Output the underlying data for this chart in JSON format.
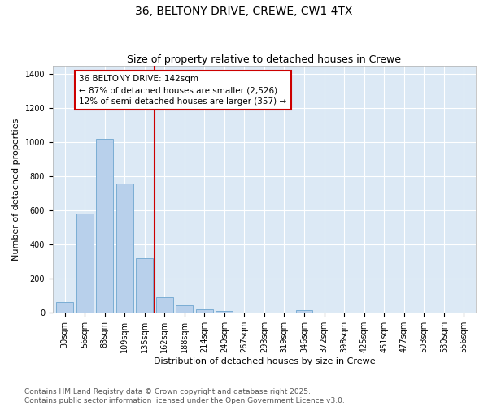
{
  "title_line1": "36, BELTONY DRIVE, CREWE, CW1 4TX",
  "title_line2": "Size of property relative to detached houses in Crewe",
  "xlabel": "Distribution of detached houses by size in Crewe",
  "ylabel": "Number of detached properties",
  "categories": [
    "30sqm",
    "56sqm",
    "83sqm",
    "109sqm",
    "135sqm",
    "162sqm",
    "188sqm",
    "214sqm",
    "240sqm",
    "267sqm",
    "293sqm",
    "319sqm",
    "346sqm",
    "372sqm",
    "398sqm",
    "425sqm",
    "451sqm",
    "477sqm",
    "503sqm",
    "530sqm",
    "556sqm"
  ],
  "values": [
    65,
    580,
    1020,
    760,
    320,
    90,
    43,
    22,
    13,
    0,
    0,
    0,
    15,
    0,
    0,
    0,
    0,
    0,
    0,
    0,
    0
  ],
  "bar_color": "#b8d0eb",
  "bar_edge_color": "#7aadd4",
  "vline_x_index": 4.5,
  "vline_color": "#cc0000",
  "annotation_line1": "36 BELTONY DRIVE: 142sqm",
  "annotation_line2": "← 87% of detached houses are smaller (2,526)",
  "annotation_line3": "12% of semi-detached houses are larger (357) →",
  "annotation_box_color": "#cc0000",
  "ylim": [
    0,
    1450
  ],
  "yticks": [
    0,
    200,
    400,
    600,
    800,
    1000,
    1200,
    1400
  ],
  "background_color": "#dce9f5",
  "grid_color": "#ffffff",
  "footnote": "Contains HM Land Registry data © Crown copyright and database right 2025.\nContains public sector information licensed under the Open Government Licence v3.0.",
  "title1_fontsize": 10,
  "title2_fontsize": 9,
  "axis_label_fontsize": 8,
  "tick_fontsize": 7,
  "annot_fontsize": 7.5,
  "footnote_fontsize": 6.5
}
